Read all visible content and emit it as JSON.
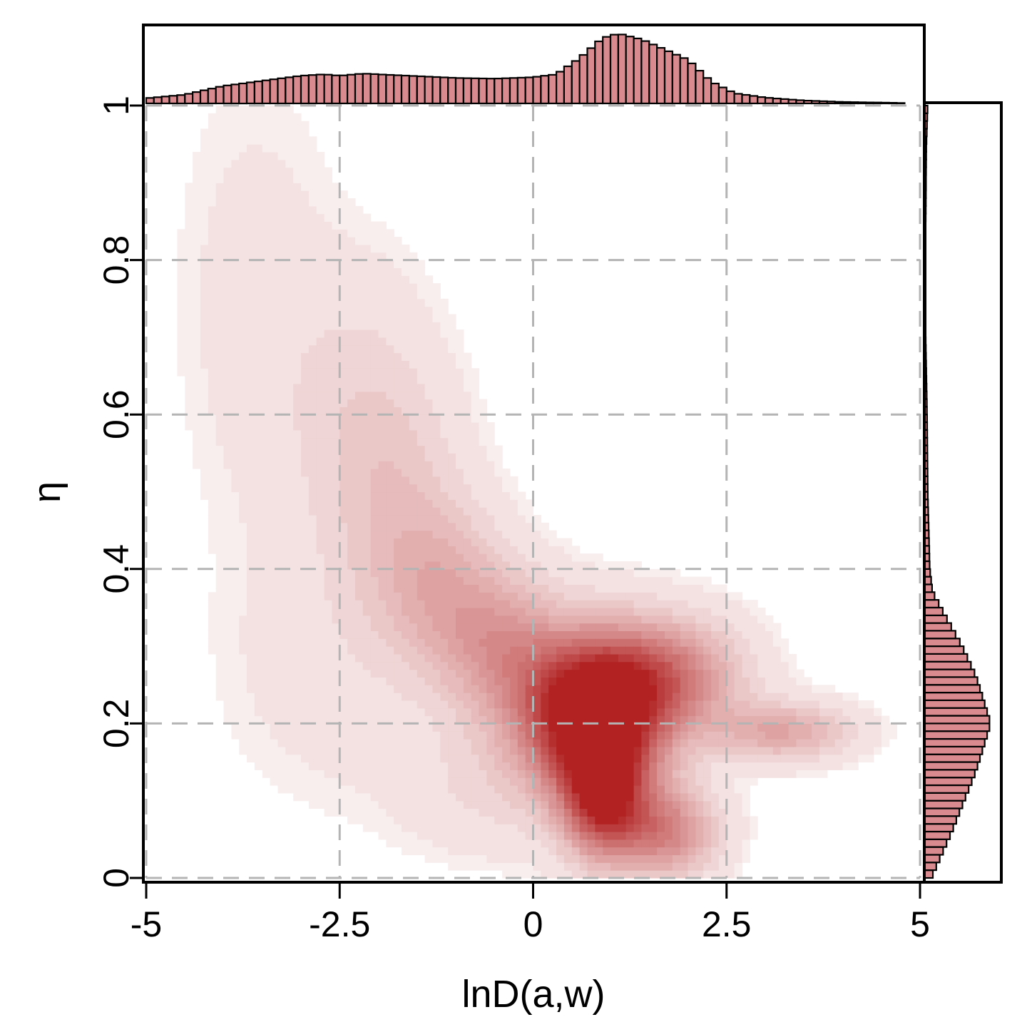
{
  "chart_data": {
    "type": "heatmap",
    "title": "",
    "xlabel": "lnD(a,w)",
    "ylabel": "η",
    "xlim": [
      -5,
      5
    ],
    "ylim": [
      0,
      1
    ],
    "x_ticks": [
      -5,
      -2.5,
      0,
      2.5,
      5
    ],
    "x_tick_labels": [
      "-5",
      "-2.5",
      "0",
      "2.5",
      "5"
    ],
    "y_ticks": [
      0,
      0.2,
      0.4,
      0.6,
      0.8,
      1
    ],
    "y_tick_labels": [
      "0",
      "0.2",
      "0.4",
      "0.6",
      "0.8",
      "1"
    ],
    "grid": true,
    "colors": {
      "heat": "#b22222",
      "marginal_fill": "#d98a8f",
      "grid": "#b4b4b4"
    },
    "heatmap_components": [
      {
        "cx": 0.9,
        "cy": 0.2,
        "sx": 0.55,
        "sy": 0.07,
        "w": 1.0
      },
      {
        "cx": 1.7,
        "cy": 0.26,
        "sx": 0.65,
        "sy": 0.05,
        "w": 0.55
      },
      {
        "cx": 3.2,
        "cy": 0.19,
        "sx": 0.6,
        "sy": 0.025,
        "w": 0.35
      },
      {
        "cx": 0.9,
        "cy": 0.1,
        "sx": 0.35,
        "sy": 0.05,
        "w": 0.75
      },
      {
        "cx": 1.7,
        "cy": 0.06,
        "sx": 0.45,
        "sy": 0.04,
        "w": 0.5
      },
      {
        "cx": 0.4,
        "cy": 0.22,
        "sx": 0.6,
        "sy": 0.06,
        "w": 0.45
      },
      {
        "cx": -0.4,
        "cy": 0.3,
        "sx": 0.6,
        "sy": 0.06,
        "w": 0.35
      },
      {
        "cx": -1.2,
        "cy": 0.38,
        "sx": 0.6,
        "sy": 0.07,
        "w": 0.25
      },
      {
        "cx": -1.8,
        "cy": 0.5,
        "sx": 0.6,
        "sy": 0.1,
        "w": 0.15
      },
      {
        "cx": -2.3,
        "cy": 0.62,
        "sx": 0.7,
        "sy": 0.12,
        "w": 0.1
      },
      {
        "cx": -3.6,
        "cy": 0.75,
        "sx": 0.7,
        "sy": 0.2,
        "w": 0.05
      },
      {
        "cx": -2.5,
        "cy": 0.28,
        "sx": 1.0,
        "sy": 0.12,
        "w": 0.06
      },
      {
        "cx": -0.5,
        "cy": 0.12,
        "sx": 0.8,
        "sy": 0.06,
        "w": 0.1
      }
    ],
    "x_marginal_bins": {
      "start": -5,
      "width": 0.1,
      "counts": []
    },
    "x_marginal_profile": [
      {
        "x": -5.0,
        "v": 0.07
      },
      {
        "x": -4.5,
        "v": 0.12
      },
      {
        "x": -4.0,
        "v": 0.24
      },
      {
        "x": -3.5,
        "v": 0.31
      },
      {
        "x": -3.0,
        "v": 0.38
      },
      {
        "x": -2.7,
        "v": 0.4
      },
      {
        "x": -2.5,
        "v": 0.38
      },
      {
        "x": -2.2,
        "v": 0.41
      },
      {
        "x": -1.8,
        "v": 0.39
      },
      {
        "x": -1.0,
        "v": 0.35
      },
      {
        "x": -0.5,
        "v": 0.34
      },
      {
        "x": 0.0,
        "v": 0.36
      },
      {
        "x": 0.3,
        "v": 0.4
      },
      {
        "x": 0.6,
        "v": 0.62
      },
      {
        "x": 0.9,
        "v": 0.9
      },
      {
        "x": 1.1,
        "v": 0.96
      },
      {
        "x": 1.4,
        "v": 0.88
      },
      {
        "x": 1.7,
        "v": 0.74
      },
      {
        "x": 2.0,
        "v": 0.6
      },
      {
        "x": 2.3,
        "v": 0.3
      },
      {
        "x": 2.6,
        "v": 0.14
      },
      {
        "x": 3.0,
        "v": 0.08
      },
      {
        "x": 3.5,
        "v": 0.04
      },
      {
        "x": 4.0,
        "v": 0.02
      },
      {
        "x": 4.6,
        "v": 0.01
      },
      {
        "x": 5.0,
        "v": 0.0
      }
    ],
    "y_marginal_profile": [
      {
        "y": 0.0,
        "v": 0.1
      },
      {
        "y": 0.03,
        "v": 0.25
      },
      {
        "y": 0.06,
        "v": 0.4
      },
      {
        "y": 0.1,
        "v": 0.58
      },
      {
        "y": 0.14,
        "v": 0.76
      },
      {
        "y": 0.18,
        "v": 0.9
      },
      {
        "y": 0.2,
        "v": 0.97
      },
      {
        "y": 0.22,
        "v": 0.9
      },
      {
        "y": 0.26,
        "v": 0.76
      },
      {
        "y": 0.3,
        "v": 0.55
      },
      {
        "y": 0.34,
        "v": 0.3
      },
      {
        "y": 0.37,
        "v": 0.12
      },
      {
        "y": 0.4,
        "v": 0.08
      },
      {
        "y": 0.5,
        "v": 0.05
      },
      {
        "y": 0.6,
        "v": 0.04
      },
      {
        "y": 0.7,
        "v": 0.02
      },
      {
        "y": 0.85,
        "v": 0.02
      },
      {
        "y": 0.95,
        "v": 0.03
      },
      {
        "y": 1.0,
        "v": 0.05
      }
    ]
  }
}
